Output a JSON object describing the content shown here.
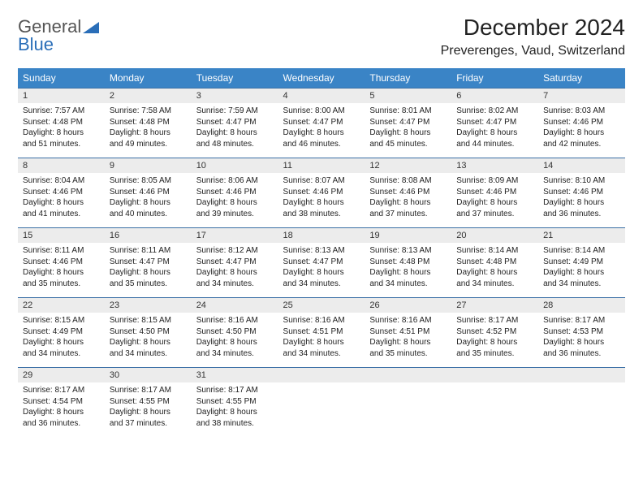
{
  "logo": {
    "word1": "General",
    "word2": "Blue"
  },
  "title": "December 2024",
  "location": "Preverenges, Vaud, Switzerland",
  "header_bg": "#3a84c6",
  "header_fg": "#ffffff",
  "daynum_bg": "#ececec",
  "row_border": "#3a6fa5",
  "page_bg": "#ffffff",
  "text_color": "#222222",
  "columns": [
    "Sunday",
    "Monday",
    "Tuesday",
    "Wednesday",
    "Thursday",
    "Friday",
    "Saturday"
  ],
  "weeks": [
    {
      "nums": [
        "1",
        "2",
        "3",
        "4",
        "5",
        "6",
        "7"
      ],
      "cells": [
        {
          "sunrise": "Sunrise: 7:57 AM",
          "sunset": "Sunset: 4:48 PM",
          "day1": "Daylight: 8 hours",
          "day2": "and 51 minutes."
        },
        {
          "sunrise": "Sunrise: 7:58 AM",
          "sunset": "Sunset: 4:48 PM",
          "day1": "Daylight: 8 hours",
          "day2": "and 49 minutes."
        },
        {
          "sunrise": "Sunrise: 7:59 AM",
          "sunset": "Sunset: 4:47 PM",
          "day1": "Daylight: 8 hours",
          "day2": "and 48 minutes."
        },
        {
          "sunrise": "Sunrise: 8:00 AM",
          "sunset": "Sunset: 4:47 PM",
          "day1": "Daylight: 8 hours",
          "day2": "and 46 minutes."
        },
        {
          "sunrise": "Sunrise: 8:01 AM",
          "sunset": "Sunset: 4:47 PM",
          "day1": "Daylight: 8 hours",
          "day2": "and 45 minutes."
        },
        {
          "sunrise": "Sunrise: 8:02 AM",
          "sunset": "Sunset: 4:47 PM",
          "day1": "Daylight: 8 hours",
          "day2": "and 44 minutes."
        },
        {
          "sunrise": "Sunrise: 8:03 AM",
          "sunset": "Sunset: 4:46 PM",
          "day1": "Daylight: 8 hours",
          "day2": "and 42 minutes."
        }
      ]
    },
    {
      "nums": [
        "8",
        "9",
        "10",
        "11",
        "12",
        "13",
        "14"
      ],
      "cells": [
        {
          "sunrise": "Sunrise: 8:04 AM",
          "sunset": "Sunset: 4:46 PM",
          "day1": "Daylight: 8 hours",
          "day2": "and 41 minutes."
        },
        {
          "sunrise": "Sunrise: 8:05 AM",
          "sunset": "Sunset: 4:46 PM",
          "day1": "Daylight: 8 hours",
          "day2": "and 40 minutes."
        },
        {
          "sunrise": "Sunrise: 8:06 AM",
          "sunset": "Sunset: 4:46 PM",
          "day1": "Daylight: 8 hours",
          "day2": "and 39 minutes."
        },
        {
          "sunrise": "Sunrise: 8:07 AM",
          "sunset": "Sunset: 4:46 PM",
          "day1": "Daylight: 8 hours",
          "day2": "and 38 minutes."
        },
        {
          "sunrise": "Sunrise: 8:08 AM",
          "sunset": "Sunset: 4:46 PM",
          "day1": "Daylight: 8 hours",
          "day2": "and 37 minutes."
        },
        {
          "sunrise": "Sunrise: 8:09 AM",
          "sunset": "Sunset: 4:46 PM",
          "day1": "Daylight: 8 hours",
          "day2": "and 37 minutes."
        },
        {
          "sunrise": "Sunrise: 8:10 AM",
          "sunset": "Sunset: 4:46 PM",
          "day1": "Daylight: 8 hours",
          "day2": "and 36 minutes."
        }
      ]
    },
    {
      "nums": [
        "15",
        "16",
        "17",
        "18",
        "19",
        "20",
        "21"
      ],
      "cells": [
        {
          "sunrise": "Sunrise: 8:11 AM",
          "sunset": "Sunset: 4:46 PM",
          "day1": "Daylight: 8 hours",
          "day2": "and 35 minutes."
        },
        {
          "sunrise": "Sunrise: 8:11 AM",
          "sunset": "Sunset: 4:47 PM",
          "day1": "Daylight: 8 hours",
          "day2": "and 35 minutes."
        },
        {
          "sunrise": "Sunrise: 8:12 AM",
          "sunset": "Sunset: 4:47 PM",
          "day1": "Daylight: 8 hours",
          "day2": "and 34 minutes."
        },
        {
          "sunrise": "Sunrise: 8:13 AM",
          "sunset": "Sunset: 4:47 PM",
          "day1": "Daylight: 8 hours",
          "day2": "and 34 minutes."
        },
        {
          "sunrise": "Sunrise: 8:13 AM",
          "sunset": "Sunset: 4:48 PM",
          "day1": "Daylight: 8 hours",
          "day2": "and 34 minutes."
        },
        {
          "sunrise": "Sunrise: 8:14 AM",
          "sunset": "Sunset: 4:48 PM",
          "day1": "Daylight: 8 hours",
          "day2": "and 34 minutes."
        },
        {
          "sunrise": "Sunrise: 8:14 AM",
          "sunset": "Sunset: 4:49 PM",
          "day1": "Daylight: 8 hours",
          "day2": "and 34 minutes."
        }
      ]
    },
    {
      "nums": [
        "22",
        "23",
        "24",
        "25",
        "26",
        "27",
        "28"
      ],
      "cells": [
        {
          "sunrise": "Sunrise: 8:15 AM",
          "sunset": "Sunset: 4:49 PM",
          "day1": "Daylight: 8 hours",
          "day2": "and 34 minutes."
        },
        {
          "sunrise": "Sunrise: 8:15 AM",
          "sunset": "Sunset: 4:50 PM",
          "day1": "Daylight: 8 hours",
          "day2": "and 34 minutes."
        },
        {
          "sunrise": "Sunrise: 8:16 AM",
          "sunset": "Sunset: 4:50 PM",
          "day1": "Daylight: 8 hours",
          "day2": "and 34 minutes."
        },
        {
          "sunrise": "Sunrise: 8:16 AM",
          "sunset": "Sunset: 4:51 PM",
          "day1": "Daylight: 8 hours",
          "day2": "and 34 minutes."
        },
        {
          "sunrise": "Sunrise: 8:16 AM",
          "sunset": "Sunset: 4:51 PM",
          "day1": "Daylight: 8 hours",
          "day2": "and 35 minutes."
        },
        {
          "sunrise": "Sunrise: 8:17 AM",
          "sunset": "Sunset: 4:52 PM",
          "day1": "Daylight: 8 hours",
          "day2": "and 35 minutes."
        },
        {
          "sunrise": "Sunrise: 8:17 AM",
          "sunset": "Sunset: 4:53 PM",
          "day1": "Daylight: 8 hours",
          "day2": "and 36 minutes."
        }
      ]
    },
    {
      "nums": [
        "29",
        "30",
        "31",
        "",
        "",
        "",
        ""
      ],
      "cells": [
        {
          "sunrise": "Sunrise: 8:17 AM",
          "sunset": "Sunset: 4:54 PM",
          "day1": "Daylight: 8 hours",
          "day2": "and 36 minutes."
        },
        {
          "sunrise": "Sunrise: 8:17 AM",
          "sunset": "Sunset: 4:55 PM",
          "day1": "Daylight: 8 hours",
          "day2": "and 37 minutes."
        },
        {
          "sunrise": "Sunrise: 8:17 AM",
          "sunset": "Sunset: 4:55 PM",
          "day1": "Daylight: 8 hours",
          "day2": "and 38 minutes."
        },
        null,
        null,
        null,
        null
      ]
    }
  ]
}
